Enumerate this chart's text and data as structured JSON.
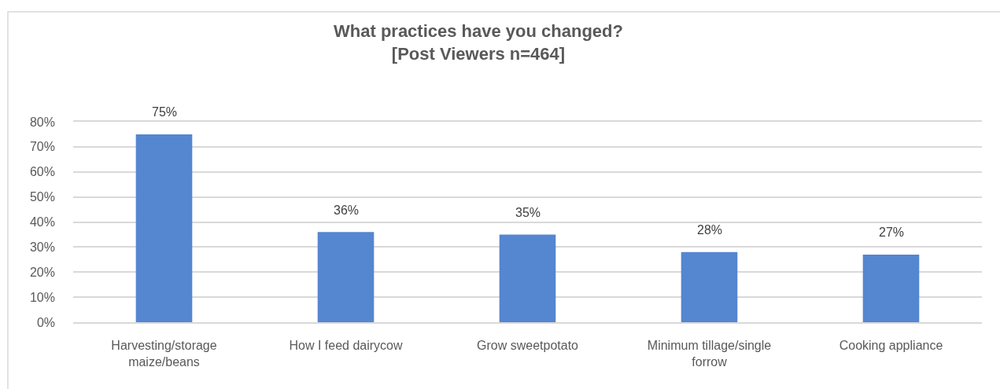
{
  "chart_data": {
    "type": "bar",
    "title": "What practices have you changed?\n[Post Viewers n=464]",
    "categories": [
      "Harvesting/storage maize/beans",
      "How I feed dairycow",
      "Grow sweetpotato",
      "Minimum tillage/single forrow",
      "Cooking appliance"
    ],
    "values": [
      75,
      36,
      35,
      28,
      27
    ],
    "value_labels": [
      "75%",
      "36%",
      "35%",
      "28%",
      "27%"
    ],
    "color": "#5586d0",
    "ylim": [
      0,
      80
    ],
    "yticks": [
      {
        "value": 0,
        "label": "0%"
      },
      {
        "value": 10,
        "label": "10%"
      },
      {
        "value": 20,
        "label": "20%"
      },
      {
        "value": 30,
        "label": "30%"
      },
      {
        "value": 40,
        "label": "40%"
      },
      {
        "value": 50,
        "label": "50%"
      },
      {
        "value": 60,
        "label": "60%"
      },
      {
        "value": 70,
        "label": "70%"
      },
      {
        "value": 80,
        "label": "80%"
      }
    ],
    "grid": "y"
  }
}
